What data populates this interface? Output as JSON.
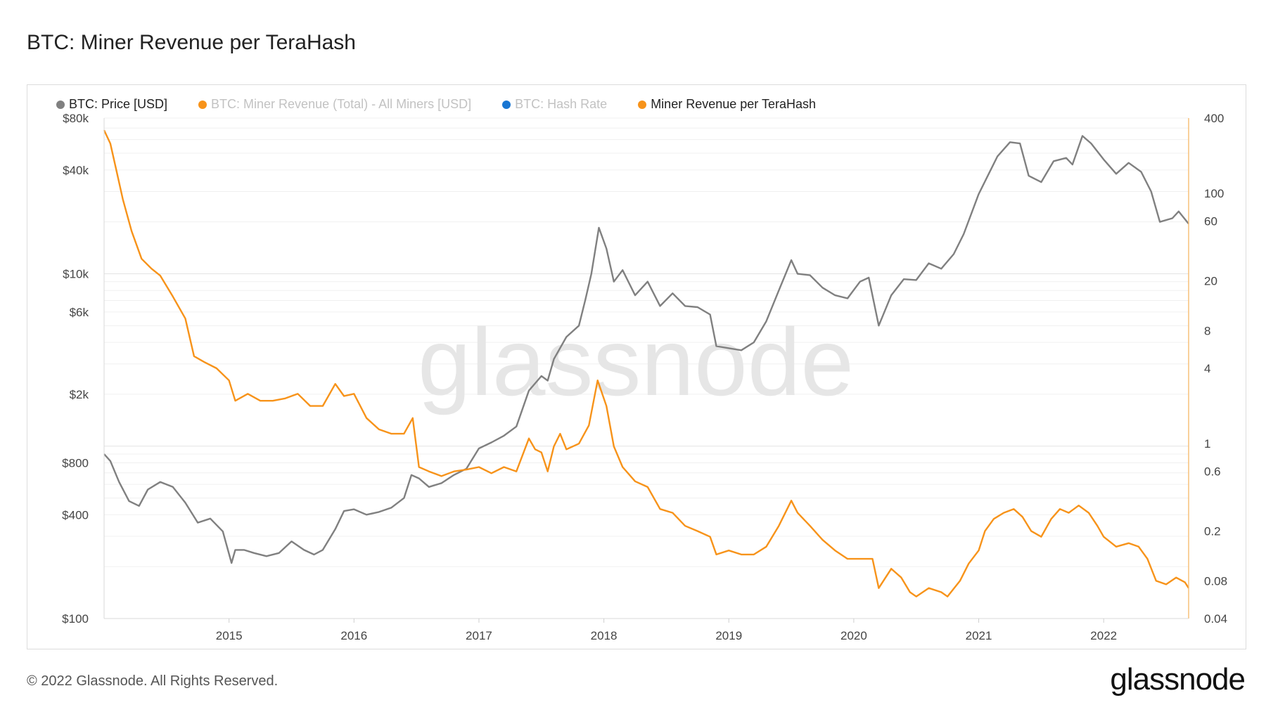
{
  "page": {
    "title": "BTC: Miner Revenue per TeraHash",
    "copyright": "© 2022 Glassnode. All Rights Reserved.",
    "logo": "glassnode",
    "watermark": "glassnode"
  },
  "legend": [
    {
      "label": "BTC: Price [USD]",
      "color": "#808080",
      "active": true
    },
    {
      "label": "BTC: Miner Revenue (Total) - All Miners [USD]",
      "color": "#f7931a",
      "active": false
    },
    {
      "label": "BTC: Hash Rate",
      "color": "#1976d2",
      "active": false
    },
    {
      "label": "Miner Revenue per TeraHash",
      "color": "#f7931a",
      "active": true
    }
  ],
  "chart_data": {
    "type": "line",
    "title": "BTC: Miner Revenue per TeraHash",
    "x_range": [
      2014.0,
      2022.68
    ],
    "x_ticks": [
      "2015",
      "2016",
      "2017",
      "2018",
      "2019",
      "2020",
      "2021",
      "2022"
    ],
    "x_tick_values": [
      2015,
      2016,
      2017,
      2018,
      2019,
      2020,
      2021,
      2022
    ],
    "y_left": {
      "scale": "log",
      "range": [
        100,
        80000
      ],
      "ticks": [
        {
          "value": 100,
          "label": "$100"
        },
        {
          "value": 400,
          "label": "$400"
        },
        {
          "value": 800,
          "label": "$800"
        },
        {
          "value": 2000,
          "label": "$2k"
        },
        {
          "value": 6000,
          "label": "$6k"
        },
        {
          "value": 10000,
          "label": "$10k"
        },
        {
          "value": 40000,
          "label": "$40k"
        },
        {
          "value": 80000,
          "label": "$80k"
        }
      ]
    },
    "y_right": {
      "scale": "log",
      "range": [
        0.04,
        400
      ],
      "ticks": [
        {
          "value": 0.04,
          "label": "0.04"
        },
        {
          "value": 0.08,
          "label": "0.08"
        },
        {
          "value": 0.2,
          "label": "0.2"
        },
        {
          "value": 0.6,
          "label": "0.6"
        },
        {
          "value": 1,
          "label": "1"
        },
        {
          "value": 4,
          "label": "4"
        },
        {
          "value": 8,
          "label": "8"
        },
        {
          "value": 20,
          "label": "20"
        },
        {
          "value": 60,
          "label": "60"
        },
        {
          "value": 100,
          "label": "100"
        },
        {
          "value": 400,
          "label": "400"
        }
      ]
    },
    "series": [
      {
        "name": "BTC: Price [USD]",
        "axis": "left",
        "color": "#808080",
        "points": [
          [
            2014.0,
            900
          ],
          [
            2014.05,
            820
          ],
          [
            2014.12,
            620
          ],
          [
            2014.2,
            480
          ],
          [
            2014.28,
            450
          ],
          [
            2014.35,
            560
          ],
          [
            2014.45,
            620
          ],
          [
            2014.55,
            580
          ],
          [
            2014.65,
            470
          ],
          [
            2014.75,
            360
          ],
          [
            2014.85,
            380
          ],
          [
            2014.95,
            320
          ],
          [
            2015.02,
            210
          ],
          [
            2015.05,
            250
          ],
          [
            2015.12,
            250
          ],
          [
            2015.2,
            240
          ],
          [
            2015.3,
            230
          ],
          [
            2015.4,
            240
          ],
          [
            2015.5,
            280
          ],
          [
            2015.6,
            250
          ],
          [
            2015.68,
            235
          ],
          [
            2015.75,
            250
          ],
          [
            2015.85,
            330
          ],
          [
            2015.92,
            420
          ],
          [
            2016.0,
            430
          ],
          [
            2016.1,
            400
          ],
          [
            2016.2,
            415
          ],
          [
            2016.3,
            440
          ],
          [
            2016.4,
            500
          ],
          [
            2016.46,
            680
          ],
          [
            2016.52,
            650
          ],
          [
            2016.6,
            580
          ],
          [
            2016.7,
            610
          ],
          [
            2016.8,
            680
          ],
          [
            2016.9,
            740
          ],
          [
            2017.0,
            970
          ],
          [
            2017.1,
            1050
          ],
          [
            2017.2,
            1150
          ],
          [
            2017.3,
            1300
          ],
          [
            2017.4,
            2100
          ],
          [
            2017.5,
            2550
          ],
          [
            2017.55,
            2400
          ],
          [
            2017.6,
            3200
          ],
          [
            2017.7,
            4300
          ],
          [
            2017.8,
            5000
          ],
          [
            2017.85,
            7000
          ],
          [
            2017.9,
            10000
          ],
          [
            2017.96,
            18500
          ],
          [
            2018.02,
            14000
          ],
          [
            2018.08,
            9000
          ],
          [
            2018.15,
            10500
          ],
          [
            2018.25,
            7500
          ],
          [
            2018.35,
            9000
          ],
          [
            2018.45,
            6500
          ],
          [
            2018.55,
            7700
          ],
          [
            2018.65,
            6500
          ],
          [
            2018.75,
            6400
          ],
          [
            2018.85,
            5800
          ],
          [
            2018.9,
            3800
          ],
          [
            2019.0,
            3700
          ],
          [
            2019.1,
            3600
          ],
          [
            2019.2,
            4000
          ],
          [
            2019.3,
            5300
          ],
          [
            2019.4,
            8000
          ],
          [
            2019.5,
            12000
          ],
          [
            2019.55,
            10000
          ],
          [
            2019.65,
            9800
          ],
          [
            2019.75,
            8300
          ],
          [
            2019.85,
            7500
          ],
          [
            2019.95,
            7200
          ],
          [
            2020.05,
            9000
          ],
          [
            2020.12,
            9500
          ],
          [
            2020.2,
            5000
          ],
          [
            2020.3,
            7500
          ],
          [
            2020.4,
            9300
          ],
          [
            2020.5,
            9200
          ],
          [
            2020.6,
            11500
          ],
          [
            2020.7,
            10700
          ],
          [
            2020.8,
            13000
          ],
          [
            2020.88,
            17000
          ],
          [
            2021.0,
            29000
          ],
          [
            2021.08,
            38000
          ],
          [
            2021.15,
            48000
          ],
          [
            2021.25,
            58000
          ],
          [
            2021.33,
            57000
          ],
          [
            2021.4,
            37000
          ],
          [
            2021.5,
            34000
          ],
          [
            2021.6,
            45000
          ],
          [
            2021.7,
            47000
          ],
          [
            2021.75,
            43000
          ],
          [
            2021.83,
            63000
          ],
          [
            2021.9,
            57000
          ],
          [
            2022.0,
            46000
          ],
          [
            2022.1,
            38000
          ],
          [
            2022.2,
            44000
          ],
          [
            2022.3,
            39000
          ],
          [
            2022.38,
            30000
          ],
          [
            2022.45,
            20000
          ],
          [
            2022.55,
            21000
          ],
          [
            2022.6,
            23000
          ],
          [
            2022.68,
            19500
          ]
        ]
      },
      {
        "name": "Miner Revenue per TeraHash",
        "axis": "right",
        "color": "#f7931a",
        "points": [
          [
            2014.0,
            320
          ],
          [
            2014.05,
            250
          ],
          [
            2014.1,
            150
          ],
          [
            2014.15,
            90
          ],
          [
            2014.22,
            50
          ],
          [
            2014.3,
            30
          ],
          [
            2014.38,
            25
          ],
          [
            2014.45,
            22
          ],
          [
            2014.55,
            15
          ],
          [
            2014.65,
            10
          ],
          [
            2014.72,
            5
          ],
          [
            2014.8,
            4.5
          ],
          [
            2014.9,
            4
          ],
          [
            2015.0,
            3.2
          ],
          [
            2015.05,
            2.2
          ],
          [
            2015.15,
            2.5
          ],
          [
            2015.25,
            2.2
          ],
          [
            2015.35,
            2.2
          ],
          [
            2015.45,
            2.3
          ],
          [
            2015.55,
            2.5
          ],
          [
            2015.65,
            2.0
          ],
          [
            2015.75,
            2.0
          ],
          [
            2015.85,
            3.0
          ],
          [
            2015.92,
            2.4
          ],
          [
            2016.0,
            2.5
          ],
          [
            2016.1,
            1.6
          ],
          [
            2016.2,
            1.3
          ],
          [
            2016.3,
            1.2
          ],
          [
            2016.4,
            1.2
          ],
          [
            2016.47,
            1.6
          ],
          [
            2016.52,
            0.65
          ],
          [
            2016.6,
            0.6
          ],
          [
            2016.7,
            0.55
          ],
          [
            2016.8,
            0.6
          ],
          [
            2016.9,
            0.62
          ],
          [
            2017.0,
            0.65
          ],
          [
            2017.1,
            0.58
          ],
          [
            2017.2,
            0.65
          ],
          [
            2017.3,
            0.6
          ],
          [
            2017.4,
            1.1
          ],
          [
            2017.45,
            0.9
          ],
          [
            2017.5,
            0.85
          ],
          [
            2017.55,
            0.6
          ],
          [
            2017.6,
            0.95
          ],
          [
            2017.65,
            1.2
          ],
          [
            2017.7,
            0.9
          ],
          [
            2017.8,
            1.0
          ],
          [
            2017.88,
            1.4
          ],
          [
            2017.95,
            3.2
          ],
          [
            2018.02,
            2.0
          ],
          [
            2018.08,
            0.95
          ],
          [
            2018.15,
            0.65
          ],
          [
            2018.25,
            0.5
          ],
          [
            2018.35,
            0.45
          ],
          [
            2018.45,
            0.3
          ],
          [
            2018.55,
            0.28
          ],
          [
            2018.65,
            0.22
          ],
          [
            2018.75,
            0.2
          ],
          [
            2018.85,
            0.18
          ],
          [
            2018.9,
            0.13
          ],
          [
            2019.0,
            0.14
          ],
          [
            2019.1,
            0.13
          ],
          [
            2019.2,
            0.13
          ],
          [
            2019.3,
            0.15
          ],
          [
            2019.4,
            0.22
          ],
          [
            2019.5,
            0.35
          ],
          [
            2019.55,
            0.28
          ],
          [
            2019.65,
            0.22
          ],
          [
            2019.75,
            0.17
          ],
          [
            2019.85,
            0.14
          ],
          [
            2019.95,
            0.12
          ],
          [
            2020.05,
            0.12
          ],
          [
            2020.15,
            0.12
          ],
          [
            2020.2,
            0.07
          ],
          [
            2020.3,
            0.1
          ],
          [
            2020.38,
            0.085
          ],
          [
            2020.45,
            0.065
          ],
          [
            2020.5,
            0.06
          ],
          [
            2020.6,
            0.07
          ],
          [
            2020.7,
            0.065
          ],
          [
            2020.75,
            0.06
          ],
          [
            2020.85,
            0.08
          ],
          [
            2020.92,
            0.11
          ],
          [
            2021.0,
            0.14
          ],
          [
            2021.05,
            0.2
          ],
          [
            2021.12,
            0.25
          ],
          [
            2021.2,
            0.28
          ],
          [
            2021.28,
            0.3
          ],
          [
            2021.35,
            0.26
          ],
          [
            2021.42,
            0.2
          ],
          [
            2021.5,
            0.18
          ],
          [
            2021.58,
            0.25
          ],
          [
            2021.65,
            0.3
          ],
          [
            2021.72,
            0.28
          ],
          [
            2021.8,
            0.32
          ],
          [
            2021.88,
            0.28
          ],
          [
            2021.95,
            0.22
          ],
          [
            2022.0,
            0.18
          ],
          [
            2022.1,
            0.15
          ],
          [
            2022.2,
            0.16
          ],
          [
            2022.28,
            0.15
          ],
          [
            2022.35,
            0.12
          ],
          [
            2022.42,
            0.08
          ],
          [
            2022.5,
            0.075
          ],
          [
            2022.58,
            0.085
          ],
          [
            2022.65,
            0.078
          ],
          [
            2022.68,
            0.07
          ]
        ]
      }
    ]
  }
}
